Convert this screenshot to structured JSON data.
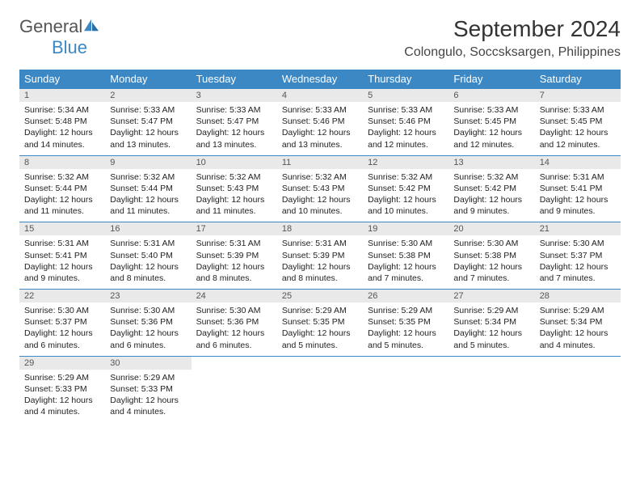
{
  "brand": {
    "name1": "General",
    "name2": "Blue",
    "color_gray": "#6a6a6a",
    "color_blue": "#3b88c4"
  },
  "title": "September 2024",
  "location": "Colongulo, Soccsksargen, Philippines",
  "header_bg": "#3b88c4",
  "header_text_color": "#ffffff",
  "daynum_bg": "#e9e9e9",
  "border_color": "#3b88c4",
  "title_fontsize": 28,
  "location_fontsize": 16,
  "cell_fontsize": 10.5,
  "weekdays": [
    "Sunday",
    "Monday",
    "Tuesday",
    "Wednesday",
    "Thursday",
    "Friday",
    "Saturday"
  ],
  "days": [
    {
      "n": "1",
      "sunrise": "5:34 AM",
      "sunset": "5:48 PM",
      "daylight": "12 hours and 14 minutes."
    },
    {
      "n": "2",
      "sunrise": "5:33 AM",
      "sunset": "5:47 PM",
      "daylight": "12 hours and 13 minutes."
    },
    {
      "n": "3",
      "sunrise": "5:33 AM",
      "sunset": "5:47 PM",
      "daylight": "12 hours and 13 minutes."
    },
    {
      "n": "4",
      "sunrise": "5:33 AM",
      "sunset": "5:46 PM",
      "daylight": "12 hours and 13 minutes."
    },
    {
      "n": "5",
      "sunrise": "5:33 AM",
      "sunset": "5:46 PM",
      "daylight": "12 hours and 12 minutes."
    },
    {
      "n": "6",
      "sunrise": "5:33 AM",
      "sunset": "5:45 PM",
      "daylight": "12 hours and 12 minutes."
    },
    {
      "n": "7",
      "sunrise": "5:33 AM",
      "sunset": "5:45 PM",
      "daylight": "12 hours and 12 minutes."
    },
    {
      "n": "8",
      "sunrise": "5:32 AM",
      "sunset": "5:44 PM",
      "daylight": "12 hours and 11 minutes."
    },
    {
      "n": "9",
      "sunrise": "5:32 AM",
      "sunset": "5:44 PM",
      "daylight": "12 hours and 11 minutes."
    },
    {
      "n": "10",
      "sunrise": "5:32 AM",
      "sunset": "5:43 PM",
      "daylight": "12 hours and 11 minutes."
    },
    {
      "n": "11",
      "sunrise": "5:32 AM",
      "sunset": "5:43 PM",
      "daylight": "12 hours and 10 minutes."
    },
    {
      "n": "12",
      "sunrise": "5:32 AM",
      "sunset": "5:42 PM",
      "daylight": "12 hours and 10 minutes."
    },
    {
      "n": "13",
      "sunrise": "5:32 AM",
      "sunset": "5:42 PM",
      "daylight": "12 hours and 9 minutes."
    },
    {
      "n": "14",
      "sunrise": "5:31 AM",
      "sunset": "5:41 PM",
      "daylight": "12 hours and 9 minutes."
    },
    {
      "n": "15",
      "sunrise": "5:31 AM",
      "sunset": "5:41 PM",
      "daylight": "12 hours and 9 minutes."
    },
    {
      "n": "16",
      "sunrise": "5:31 AM",
      "sunset": "5:40 PM",
      "daylight": "12 hours and 8 minutes."
    },
    {
      "n": "17",
      "sunrise": "5:31 AM",
      "sunset": "5:39 PM",
      "daylight": "12 hours and 8 minutes."
    },
    {
      "n": "18",
      "sunrise": "5:31 AM",
      "sunset": "5:39 PM",
      "daylight": "12 hours and 8 minutes."
    },
    {
      "n": "19",
      "sunrise": "5:30 AM",
      "sunset": "5:38 PM",
      "daylight": "12 hours and 7 minutes."
    },
    {
      "n": "20",
      "sunrise": "5:30 AM",
      "sunset": "5:38 PM",
      "daylight": "12 hours and 7 minutes."
    },
    {
      "n": "21",
      "sunrise": "5:30 AM",
      "sunset": "5:37 PM",
      "daylight": "12 hours and 7 minutes."
    },
    {
      "n": "22",
      "sunrise": "5:30 AM",
      "sunset": "5:37 PM",
      "daylight": "12 hours and 6 minutes."
    },
    {
      "n": "23",
      "sunrise": "5:30 AM",
      "sunset": "5:36 PM",
      "daylight": "12 hours and 6 minutes."
    },
    {
      "n": "24",
      "sunrise": "5:30 AM",
      "sunset": "5:36 PM",
      "daylight": "12 hours and 6 minutes."
    },
    {
      "n": "25",
      "sunrise": "5:29 AM",
      "sunset": "5:35 PM",
      "daylight": "12 hours and 5 minutes."
    },
    {
      "n": "26",
      "sunrise": "5:29 AM",
      "sunset": "5:35 PM",
      "daylight": "12 hours and 5 minutes."
    },
    {
      "n": "27",
      "sunrise": "5:29 AM",
      "sunset": "5:34 PM",
      "daylight": "12 hours and 5 minutes."
    },
    {
      "n": "28",
      "sunrise": "5:29 AM",
      "sunset": "5:34 PM",
      "daylight": "12 hours and 4 minutes."
    },
    {
      "n": "29",
      "sunrise": "5:29 AM",
      "sunset": "5:33 PM",
      "daylight": "12 hours and 4 minutes."
    },
    {
      "n": "30",
      "sunrise": "5:29 AM",
      "sunset": "5:33 PM",
      "daylight": "12 hours and 4 minutes."
    }
  ],
  "labels": {
    "sunrise": "Sunrise:",
    "sunset": "Sunset:",
    "daylight": "Daylight:"
  },
  "trailing_empty": 5
}
